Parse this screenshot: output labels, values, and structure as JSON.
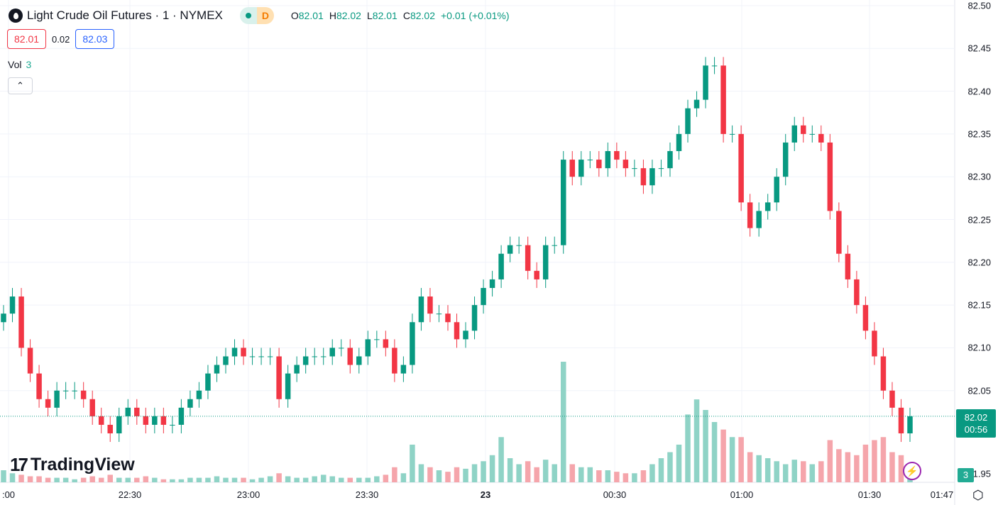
{
  "header": {
    "title": "Light Crude Oil Futures · 1 · NYMEX",
    "market_status": "D",
    "ohlc": {
      "o_label": "O",
      "o": "82.01",
      "h_label": "H",
      "h": "82.02",
      "l_label": "L",
      "l": "82.01",
      "c_label": "C",
      "c": "82.02",
      "change": "+0.01 (+0.01%)"
    }
  },
  "quotes": {
    "sell": "82.01",
    "spread": "0.02",
    "buy": "82.03"
  },
  "volume_legend": {
    "label": "Vol",
    "value": "3"
  },
  "collapse_icon": "chevron-up",
  "price_axis": [
    "82.50",
    "82.45",
    "82.40",
    "82.35",
    "82.30",
    "82.25",
    "82.20",
    "82.15",
    "82.10",
    "82.05",
    "81.95"
  ],
  "time_axis": [
    ":00",
    "22:30",
    "23:00",
    "23:30",
    "23",
    "00:30",
    "01:00",
    "01:30",
    "01:47"
  ],
  "last_price": {
    "price": "82.02",
    "countdown": "00:56"
  },
  "last_volume": "3",
  "brand": "TradingView",
  "colors": {
    "up": "#089981",
    "down": "#f23645",
    "vol_up": "#8fd3c6",
    "vol_down": "#f5a5ab"
  },
  "chart_data": {
    "type": "candlestick",
    "ylim": [
      81.93,
      82.5
    ],
    "closes": [
      82.14,
      82.16,
      82.1,
      82.07,
      82.04,
      82.03,
      82.05,
      82.05,
      82.05,
      82.04,
      82.02,
      82.01,
      82.0,
      82.02,
      82.03,
      82.02,
      82.01,
      82.02,
      82.01,
      82.01,
      82.03,
      82.04,
      82.05,
      82.07,
      82.08,
      82.09,
      82.1,
      82.09,
      82.09,
      82.09,
      82.09,
      82.04,
      82.07,
      82.08,
      82.09,
      82.09,
      82.09,
      82.1,
      82.1,
      82.08,
      82.09,
      82.11,
      82.11,
      82.1,
      82.07,
      82.08,
      82.13,
      82.16,
      82.14,
      82.14,
      82.13,
      82.11,
      82.12,
      82.15,
      82.17,
      82.18,
      82.21,
      82.22,
      82.22,
      82.19,
      82.18,
      82.22,
      82.22,
      82.32,
      82.3,
      82.32,
      82.32,
      82.31,
      82.33,
      82.32,
      82.31,
      82.31,
      82.29,
      82.31,
      82.31,
      82.33,
      82.35,
      82.38,
      82.39,
      82.43,
      82.43,
      82.35,
      82.35,
      82.27,
      82.24,
      82.26,
      82.27,
      82.3,
      82.34,
      82.36,
      82.35,
      82.35,
      82.34,
      82.26,
      82.21,
      82.18,
      82.15,
      82.12,
      82.09,
      82.05,
      82.03,
      82.0,
      82.02
    ],
    "volumes": [
      8,
      6,
      5,
      4,
      4,
      3,
      3,
      3,
      2,
      3,
      4,
      3,
      5,
      3,
      3,
      3,
      4,
      3,
      2,
      2,
      2,
      3,
      3,
      3,
      4,
      3,
      3,
      3,
      2,
      3,
      4,
      6,
      4,
      3,
      3,
      4,
      5,
      4,
      3,
      3,
      3,
      3,
      4,
      5,
      10,
      6,
      25,
      12,
      10,
      8,
      7,
      10,
      9,
      12,
      14,
      18,
      30,
      16,
      12,
      14,
      10,
      15,
      12,
      80,
      12,
      10,
      10,
      8,
      8,
      7,
      6,
      6,
      8,
      12,
      16,
      20,
      25,
      45,
      55,
      48,
      40,
      35,
      30,
      30,
      20,
      18,
      16,
      14,
      12,
      15,
      14,
      12,
      14,
      28,
      22,
      20,
      18,
      25,
      28,
      30,
      20,
      18,
      3
    ]
  }
}
